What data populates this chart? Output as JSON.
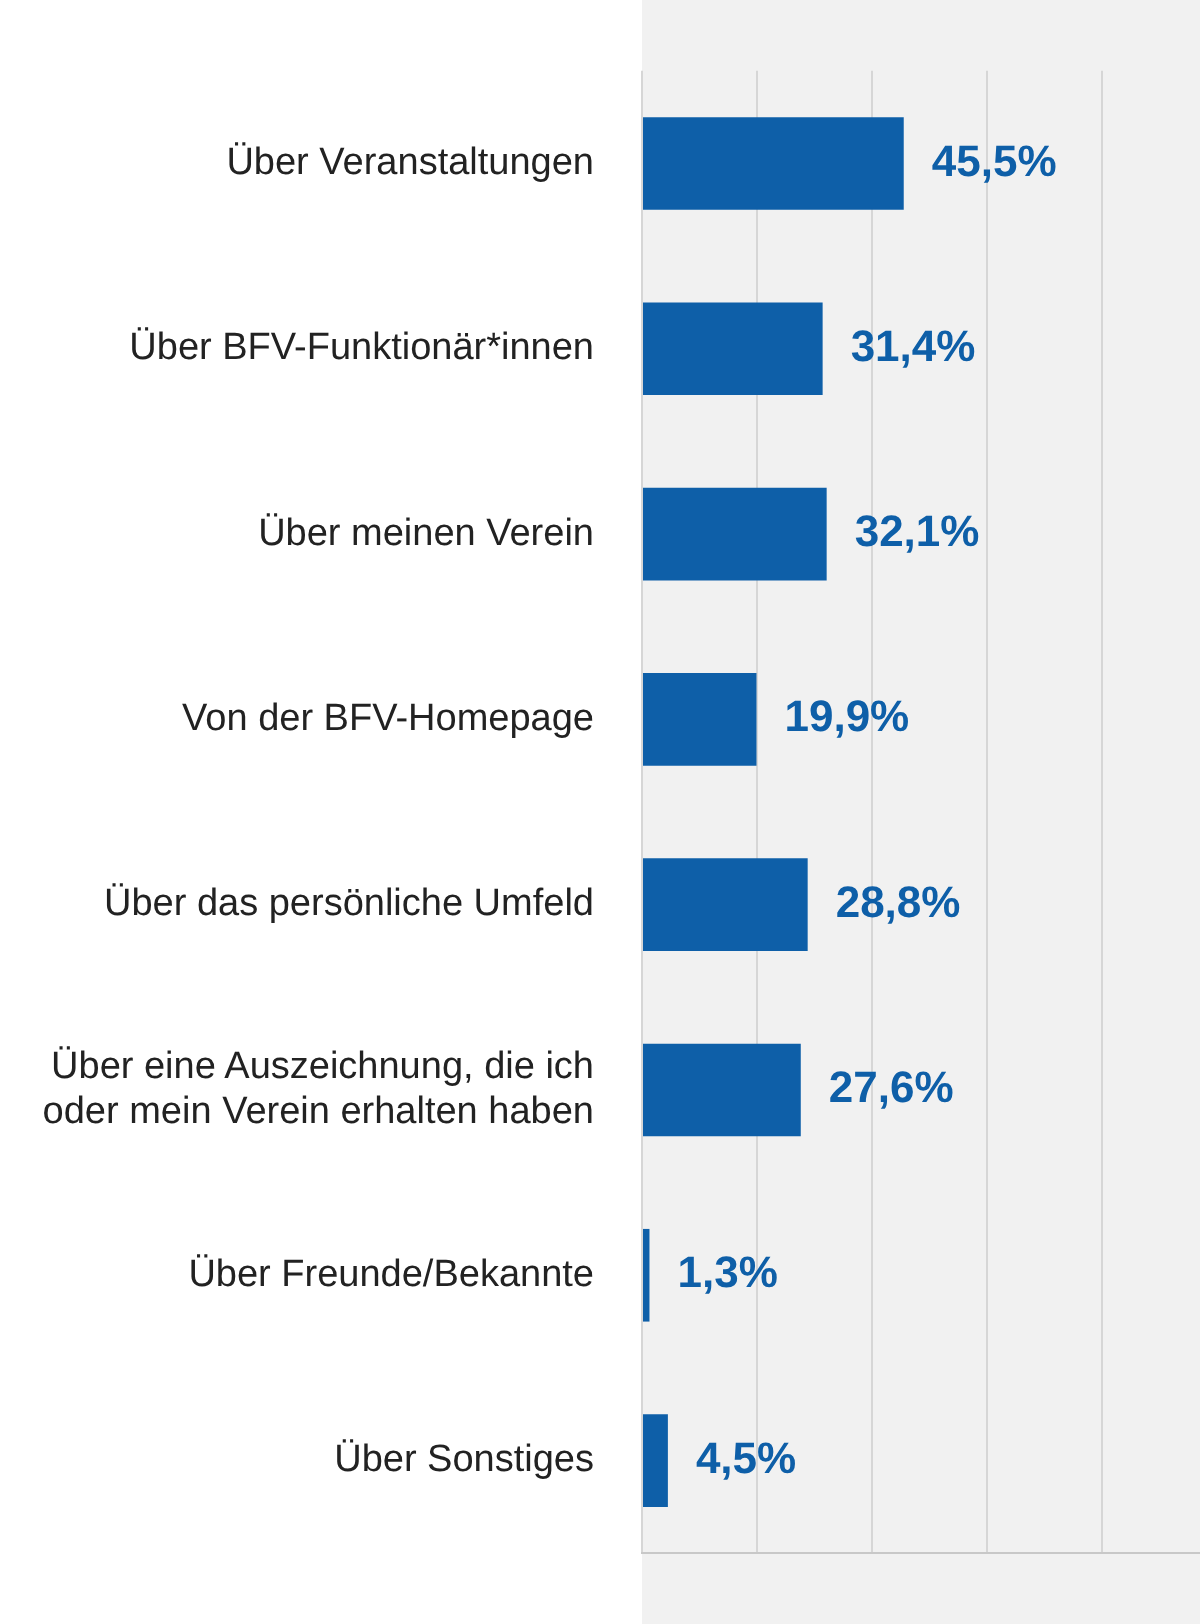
{
  "chart_data": {
    "type": "bar",
    "orientation": "horizontal",
    "categories": [
      "Über Veranstaltungen",
      "Über BFV-Funktionär*innen",
      "Über meinen Verein",
      "Von der BFV-Homepage",
      "Über das persönliche Umfeld",
      "Über eine Auszeichnung, die ich oder mein Verein erhalten haben",
      "Über Freunde/Bekannte",
      "Über Sonstiges"
    ],
    "values": [
      45.5,
      31.4,
      32.1,
      19.9,
      28.8,
      27.6,
      1.3,
      4.5
    ],
    "value_labels": [
      "45,5%",
      "31,4%",
      "32,1%",
      "19,9%",
      "28,8%",
      "27,6%",
      "1,3%",
      "4,5%"
    ],
    "color": "#0e5fa8",
    "xlim": [
      0,
      97
    ],
    "xticks": [
      {
        "value": 0,
        "label": null
      },
      {
        "value": 20,
        "label": null
      },
      {
        "value": 40,
        "label": null
      },
      {
        "value": 60,
        "label": null
      },
      {
        "value": 80,
        "label": null
      }
    ],
    "grid": "x",
    "tick_labels": "y",
    "legend": false
  }
}
